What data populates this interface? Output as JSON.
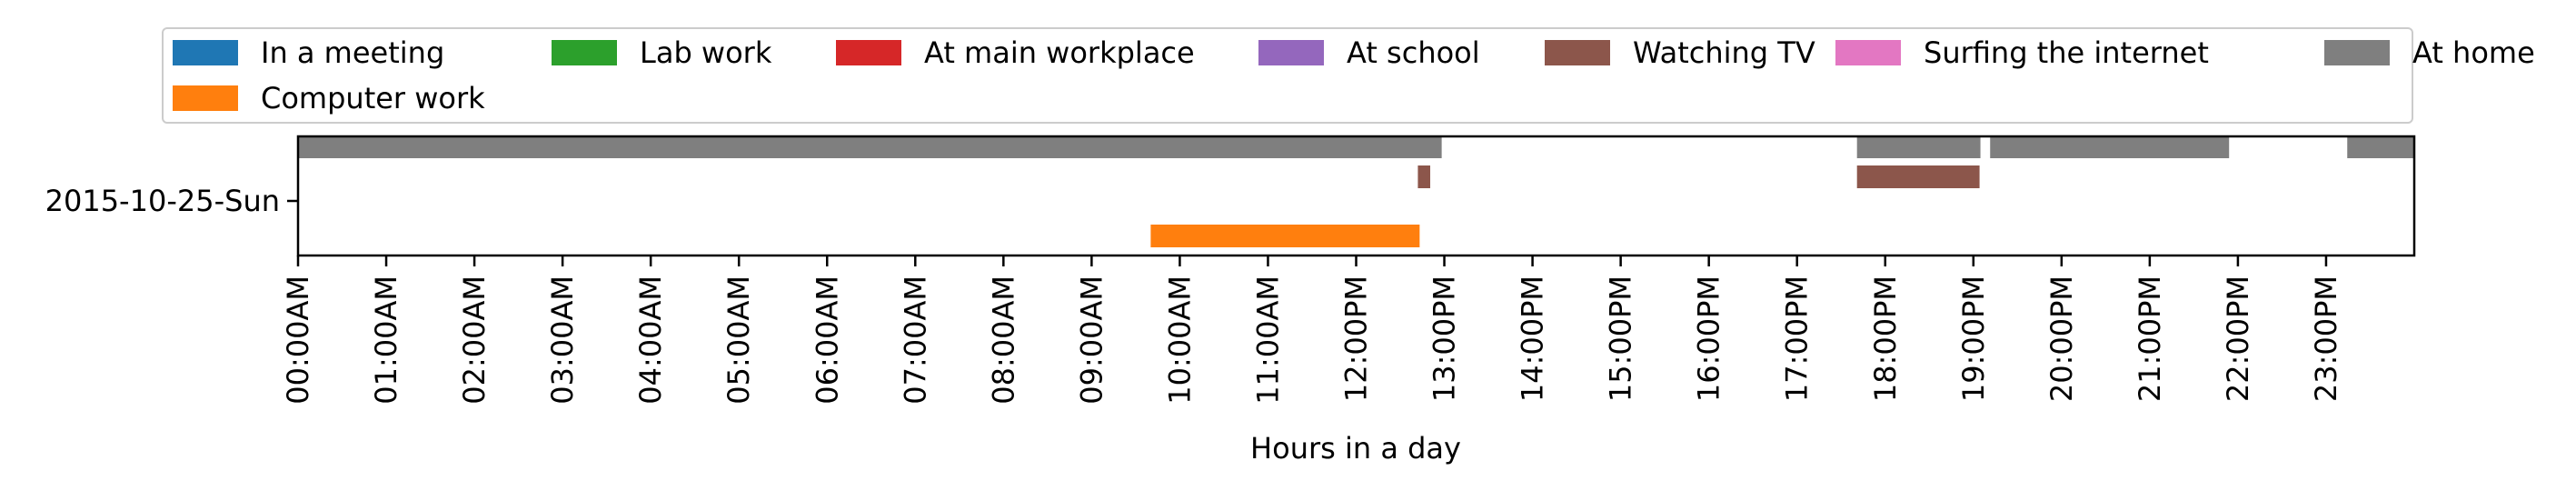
{
  "chart_data": {
    "type": "bar",
    "orientation": "horizontal-timeline",
    "xlabel": "Hours in a day",
    "ylabel": "",
    "xlim": [
      0,
      24
    ],
    "y_categories": [
      "2015-10-25-Sun"
    ],
    "x_tick_labels": [
      "00:00AM",
      "01:00AM",
      "02:00AM",
      "03:00AM",
      "04:00AM",
      "05:00AM",
      "06:00AM",
      "07:00AM",
      "08:00AM",
      "09:00AM",
      "10:00AM",
      "11:00AM",
      "12:00PM",
      "13:00PM",
      "14:00PM",
      "15:00PM",
      "16:00PM",
      "17:00PM",
      "18:00PM",
      "19:00PM",
      "20:00PM",
      "21:00PM",
      "22:00PM",
      "23:00PM"
    ],
    "legend_position": "top",
    "legend": [
      {
        "name": "In a meeting",
        "color": "#1f77b4"
      },
      {
        "name": "Lab work",
        "color": "#2ca02c"
      },
      {
        "name": "At main workplace",
        "color": "#d62728"
      },
      {
        "name": "At school",
        "color": "#9467bd"
      },
      {
        "name": "Watching TV",
        "color": "#8c564b"
      },
      {
        "name": "Surfing the internet",
        "color": "#e377c2"
      },
      {
        "name": "At home",
        "color": "#7f7f7f"
      },
      {
        "name": "Computer work",
        "color": "#ff7f0e"
      }
    ],
    "series": [
      {
        "name": "At home",
        "color": "#7f7f7f",
        "lane": "upper",
        "intervals": [
          [
            0,
            12.97
          ],
          [
            17.68,
            19.08
          ],
          [
            19.19,
            21.9
          ],
          [
            23.24,
            24
          ]
        ]
      },
      {
        "name": "Watching TV",
        "color": "#8c564b",
        "lane": "middle",
        "intervals": [
          [
            12.7,
            12.84
          ],
          [
            17.68,
            19.07
          ]
        ]
      },
      {
        "name": "Computer work",
        "color": "#ff7f0e",
        "lane": "lower",
        "intervals": [
          [
            9.67,
            12.72
          ]
        ]
      }
    ]
  }
}
